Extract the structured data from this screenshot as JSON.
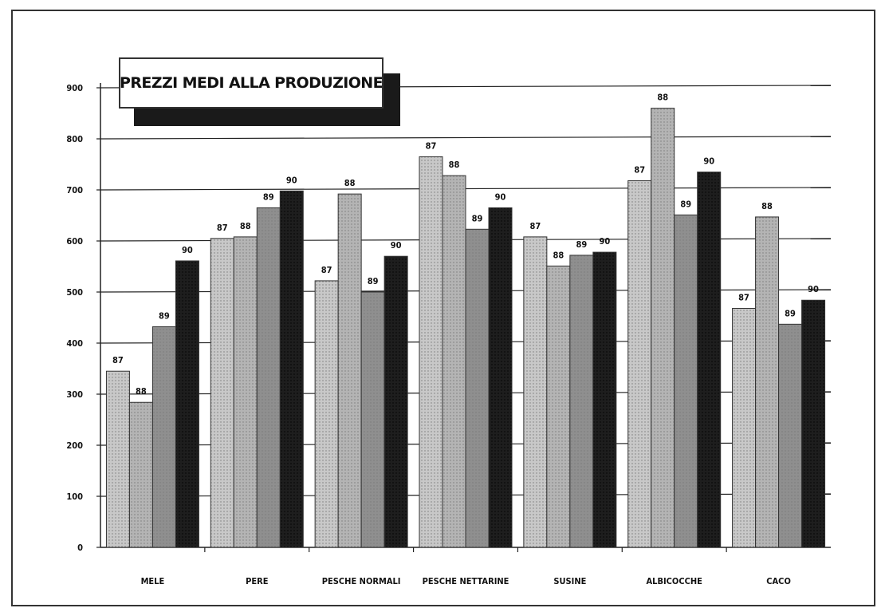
{
  "chart_data": {
    "type": "bar",
    "title": "PREZZI MEDI ALLA PRODUZIONE",
    "xlabel": "",
    "ylabel": "",
    "ylim": [
      0,
      900
    ],
    "yticks": [
      "0",
      "100",
      "200",
      "300",
      "400",
      "500",
      "600",
      "700",
      "800",
      "900"
    ],
    "grid": true,
    "legend": "none",
    "categories": [
      "MELE",
      "PERE",
      "PESCHE NORMALI",
      "PESCHE NETTARINE",
      "SUSINE",
      "ALBICOCCHE",
      "CACO"
    ],
    "series": [
      {
        "name": "87",
        "color": "#c8c8c8",
        "values": [
          345,
          605,
          522,
          765,
          608,
          718,
          468
        ]
      },
      {
        "name": "88",
        "color": "#b4b4b4",
        "values": [
          284,
          608,
          692,
          728,
          551,
          860,
          647
        ]
      },
      {
        "name": "89",
        "color": "#8f8f8f",
        "values": [
          432,
          665,
          500,
          623,
          572,
          651,
          437
        ]
      },
      {
        "name": "90",
        "color": "#1e1e1e",
        "values": [
          561,
          698,
          570,
          665,
          578,
          735,
          484
        ]
      }
    ]
  }
}
